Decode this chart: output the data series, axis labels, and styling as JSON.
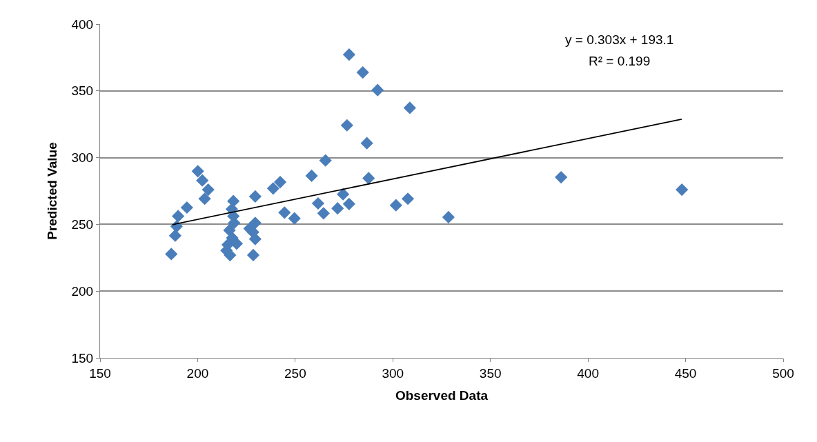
{
  "chart_data": {
    "type": "scatter",
    "xlabel": "Observed Data",
    "ylabel": "Predicted Value",
    "xlim": [
      150,
      500
    ],
    "xticks": [
      150,
      200,
      250,
      300,
      350,
      400,
      450,
      500
    ],
    "ylim": [
      150,
      400
    ],
    "yticks": [
      150,
      200,
      250,
      300,
      350,
      400
    ],
    "grid": "y",
    "annotations": [
      "y = 0.303x + 193.1",
      "R² = 0.199"
    ],
    "series": [
      {
        "color": "#4a7ebb",
        "marker": "diamond",
        "x": [
          200.1,
          202.4,
          205.4,
          203.6,
          194.5,
          190,
          189.2,
          188.5,
          186.5,
          218.3,
          217.5,
          218.3,
          218.7,
          216.3,
          217.7,
          220,
          215.4,
          214.8,
          216.6,
          229.5,
          229.5,
          226.6,
          228.4,
          229.5,
          228.5,
          277.6,
          284.6,
          292.2,
          308.7,
          276.5,
          286.7,
          265.5,
          258.4,
          287.6,
          242.3,
          238.7,
          274.5,
          261.7,
          277.6,
          271.7,
          264.5,
          244.5,
          249.6,
          301.6,
          307.7,
          328.5,
          386.2,
          448.1
        ],
        "values": [
          289.8,
          282.9,
          276,
          269.2,
          262.6,
          256.2,
          248.5,
          241.6,
          227.8,
          267.4,
          261.4,
          256.2,
          251.1,
          245.6,
          239.9,
          235.6,
          234.7,
          230.4,
          226.9,
          270.9,
          251.1,
          246.8,
          244.2,
          239,
          227,
          377.2,
          363.8,
          350.6,
          337.3,
          324.2,
          310.8,
          297.9,
          286.4,
          284.6,
          281.7,
          276.9,
          272.6,
          265.7,
          265.3,
          262,
          258.3,
          258.8,
          254.5,
          264.3,
          269.2,
          255.4,
          285.3,
          276
        ]
      },
      {
        "type": "line",
        "color": "#000000",
        "line_style": "solid",
        "marker": "none",
        "x": [
          187,
          448
        ],
        "values": [
          249.8,
          328.8
        ]
      }
    ]
  }
}
